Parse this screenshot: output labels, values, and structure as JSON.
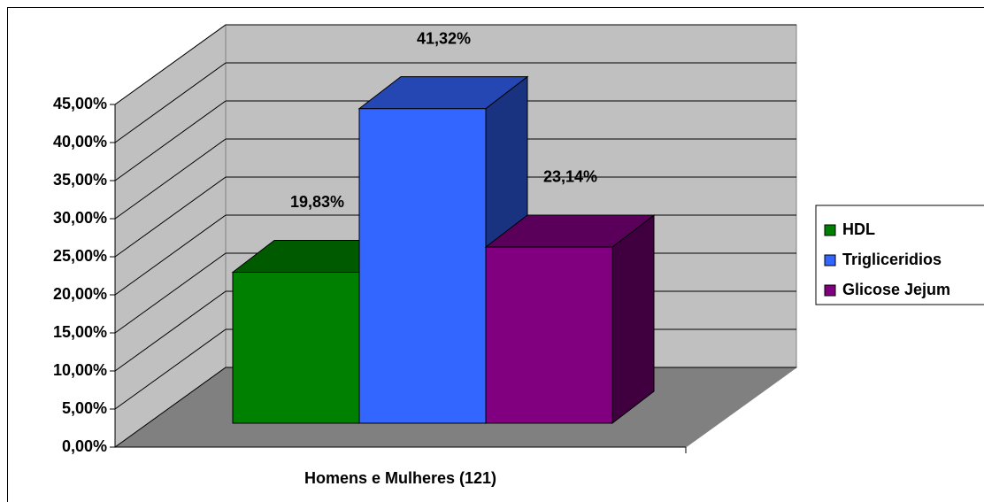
{
  "chart_data": {
    "type": "bar3d",
    "categories": [
      "Homens e Mulheres (121)"
    ],
    "series": [
      {
        "name": "HDL",
        "color": "#008000",
        "values": [
          19.83
        ],
        "value_labels": [
          "19,83%"
        ]
      },
      {
        "name": "Trigliceridios",
        "color": "#3366ff",
        "values": [
          41.32
        ],
        "value_labels": [
          "41,32%"
        ]
      },
      {
        "name": "Glicose Jejum",
        "color": "#800080",
        "values": [
          23.14
        ],
        "value_labels": [
          "23,14%"
        ]
      }
    ],
    "ylim": [
      0,
      45
    ],
    "yticks": [
      {
        "value": 0,
        "label": "0,00%"
      },
      {
        "value": 5,
        "label": "5,00%"
      },
      {
        "value": 10,
        "label": "10,00%"
      },
      {
        "value": 15,
        "label": "15,00%"
      },
      {
        "value": 20,
        "label": "20,00%"
      },
      {
        "value": 25,
        "label": "25,00%"
      },
      {
        "value": 30,
        "label": "30,00%"
      },
      {
        "value": 35,
        "label": "35,00%"
      },
      {
        "value": 40,
        "label": "40,00%"
      },
      {
        "value": 45,
        "label": "45,00%"
      }
    ],
    "grid": true,
    "legend": "right"
  }
}
